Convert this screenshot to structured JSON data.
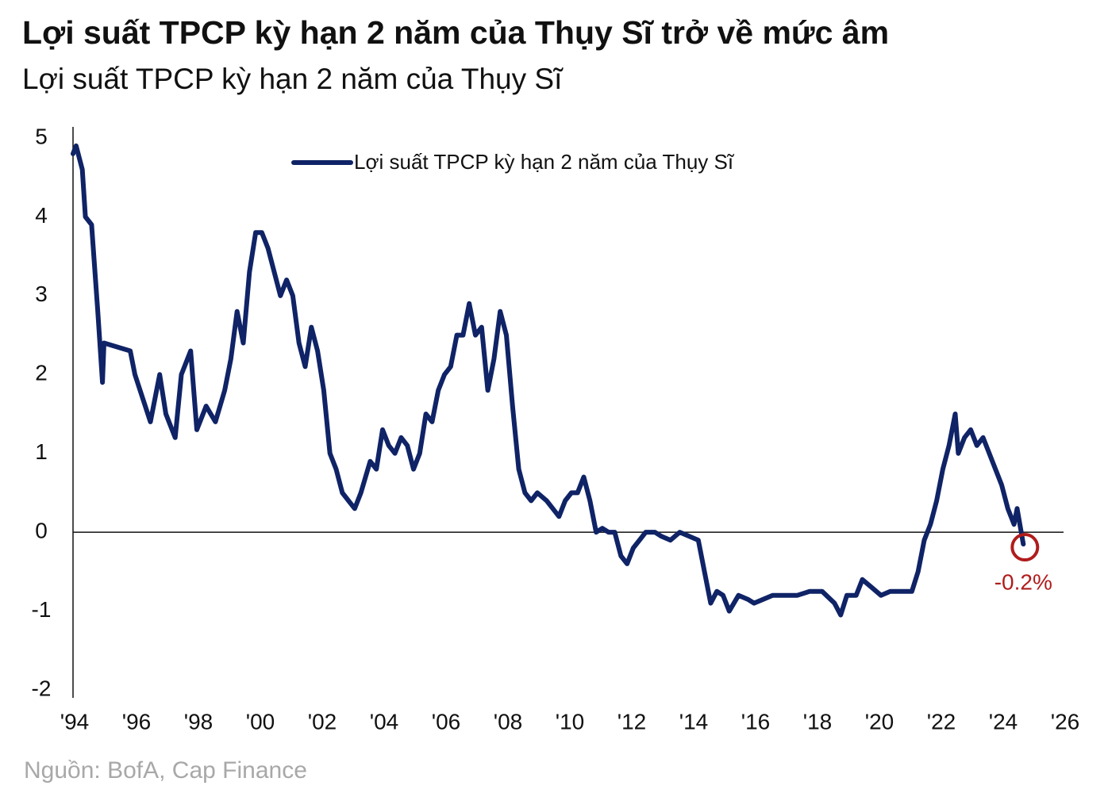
{
  "chart_data": {
    "type": "line",
    "title": "Lợi suất TPCP kỳ hạn 2 năm của Thụy Sĩ trở về mức âm",
    "subtitle": "Lợi suất TPCP kỳ hạn 2 năm của Thụy Sĩ",
    "source": "Nguồn: BofA, Cap Finance",
    "annotation": "-0.2%",
    "annotation_color": "#b01c1c",
    "legend": "top",
    "grid": false,
    "xlim": [
      1994,
      2026
    ],
    "xticks": [
      {
        "value": 1994,
        "label": "'94"
      },
      {
        "value": 1996,
        "label": "'96"
      },
      {
        "value": 1998,
        "label": "'98"
      },
      {
        "value": 2000,
        "label": "'00"
      },
      {
        "value": 2002,
        "label": "'02"
      },
      {
        "value": 2004,
        "label": "'04"
      },
      {
        "value": 2006,
        "label": "'06"
      },
      {
        "value": 2008,
        "label": "'08"
      },
      {
        "value": 2010,
        "label": "'10"
      },
      {
        "value": 2012,
        "label": "'12"
      },
      {
        "value": 2014,
        "label": "'14"
      },
      {
        "value": 2016,
        "label": "'16"
      },
      {
        "value": 2018,
        "label": "'18"
      },
      {
        "value": 2020,
        "label": "'20"
      },
      {
        "value": 2022,
        "label": "'22"
      },
      {
        "value": 2024,
        "label": "'24"
      },
      {
        "value": 2026,
        "label": "'26"
      }
    ],
    "ylim": [
      -2,
      5
    ],
    "yticks": [
      -2,
      -1,
      0,
      1,
      2,
      3,
      4,
      5
    ],
    "x": [
      1994.0,
      1994.1,
      1994.3,
      1994.4,
      1994.6,
      1994.8,
      1994.95,
      1995.0,
      1995.85,
      1996.0,
      1996.5,
      1996.8,
      1997.0,
      1997.3,
      1997.5,
      1997.8,
      1998.0,
      1998.3,
      1998.6,
      1998.9,
      1999.1,
      1999.3,
      1999.5,
      1999.7,
      1999.9,
      2000.1,
      2000.3,
      2000.5,
      2000.7,
      2000.9,
      2001.1,
      2001.3,
      2001.5,
      2001.7,
      2001.9,
      2002.1,
      2002.3,
      2002.5,
      2002.7,
      2002.9,
      2003.1,
      2003.3,
      2003.6,
      2003.8,
      2004.0,
      2004.2,
      2004.4,
      2004.6,
      2004.8,
      2005.0,
      2005.2,
      2005.4,
      2005.6,
      2005.8,
      2006.0,
      2006.2,
      2006.4,
      2006.6,
      2006.8,
      2007.0,
      2007.2,
      2007.4,
      2007.6,
      2007.8,
      2008.0,
      2008.2,
      2008.4,
      2008.6,
      2008.8,
      2009.0,
      2009.3,
      2009.5,
      2009.7,
      2009.9,
      2010.1,
      2010.3,
      2010.5,
      2010.7,
      2010.9,
      2011.1,
      2011.3,
      2011.5,
      2011.7,
      2011.9,
      2012.1,
      2012.3,
      2012.5,
      2012.8,
      2013.0,
      2013.3,
      2013.6,
      2013.9,
      2014.2,
      2014.4,
      2014.6,
      2014.8,
      2015.0,
      2015.2,
      2015.5,
      2015.8,
      2016.0,
      2016.3,
      2016.6,
      2017.0,
      2017.4,
      2017.8,
      2018.2,
      2018.6,
      2018.8,
      2019.0,
      2019.3,
      2019.5,
      2019.8,
      2020.1,
      2020.4,
      2020.8,
      2021.1,
      2021.3,
      2021.5,
      2021.7,
      2021.9,
      2022.1,
      2022.3,
      2022.5,
      2022.6,
      2022.8,
      2023.0,
      2023.2,
      2023.4,
      2023.6,
      2023.8,
      2024.0,
      2024.2,
      2024.4,
      2024.5,
      2024.7
    ],
    "series": [
      {
        "name": "Lợi suất TPCP kỳ hạn 2 năm của Thụy Sĩ",
        "color": "#0f2366",
        "values": [
          4.8,
          4.9,
          4.6,
          4.0,
          3.9,
          2.8,
          1.9,
          2.4,
          2.3,
          2.0,
          1.4,
          2.0,
          1.5,
          1.2,
          2.0,
          2.3,
          1.3,
          1.6,
          1.4,
          1.8,
          2.2,
          2.8,
          2.4,
          3.3,
          3.8,
          3.8,
          3.6,
          3.3,
          3.0,
          3.2,
          3.0,
          2.4,
          2.1,
          2.6,
          2.3,
          1.8,
          1.0,
          0.8,
          0.5,
          0.4,
          0.3,
          0.5,
          0.9,
          0.8,
          1.3,
          1.1,
          1.0,
          1.2,
          1.1,
          0.8,
          1.0,
          1.5,
          1.4,
          1.8,
          2.0,
          2.1,
          2.5,
          2.5,
          2.9,
          2.5,
          2.6,
          1.8,
          2.2,
          2.8,
          2.5,
          1.6,
          0.8,
          0.5,
          0.4,
          0.5,
          0.4,
          0.3,
          0.2,
          0.4,
          0.5,
          0.5,
          0.7,
          0.4,
          0.0,
          0.05,
          0.0,
          0.0,
          -0.3,
          -0.4,
          -0.2,
          -0.1,
          0.0,
          0.0,
          -0.05,
          -0.1,
          0.0,
          -0.05,
          -0.1,
          -0.5,
          -0.9,
          -0.75,
          -0.8,
          -1.0,
          -0.8,
          -0.85,
          -0.9,
          -0.85,
          -0.8,
          -0.8,
          -0.8,
          -0.75,
          -0.75,
          -0.9,
          -1.05,
          -0.8,
          -0.8,
          -0.6,
          -0.7,
          -0.8,
          -0.75,
          -0.75,
          -0.75,
          -0.5,
          -0.1,
          0.1,
          0.4,
          0.8,
          1.1,
          1.5,
          1.0,
          1.2,
          1.3,
          1.1,
          1.2,
          1.0,
          0.8,
          0.6,
          0.3,
          0.1,
          0.3,
          -0.15
        ]
      }
    ]
  }
}
